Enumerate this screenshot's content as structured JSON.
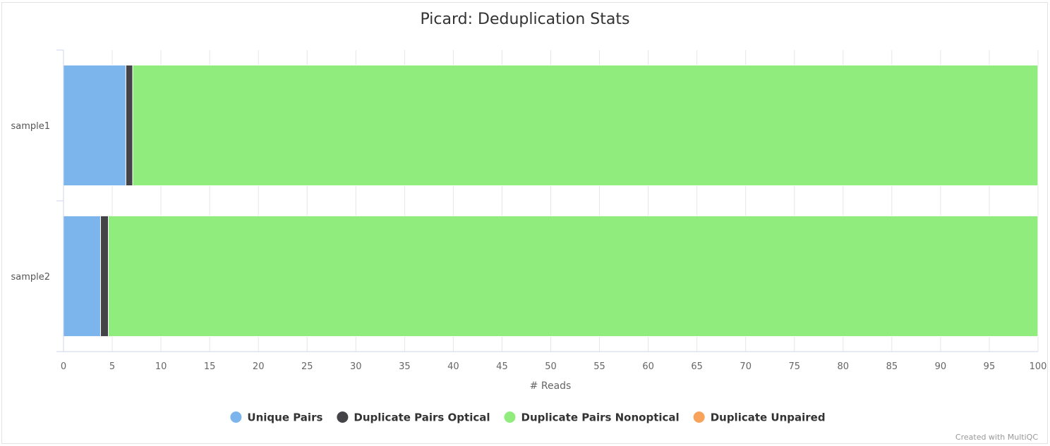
{
  "chart_data": {
    "type": "bar",
    "orientation": "horizontal",
    "stacked": "percent",
    "title": "Picard: Deduplication Stats",
    "xlabel": "# Reads",
    "ylabel": "",
    "xlim": [
      0,
      100
    ],
    "x_ticks": [
      "0",
      "5",
      "10",
      "15",
      "20",
      "25",
      "30",
      "35",
      "40",
      "45",
      "50",
      "55",
      "60",
      "65",
      "70",
      "75",
      "80",
      "85",
      "90",
      "95",
      "100"
    ],
    "categories": [
      "sample1",
      "sample2"
    ],
    "series": [
      {
        "name": "Unique Pairs",
        "color": "#7cb5ec",
        "values": [
          6.4,
          3.8
        ]
      },
      {
        "name": "Duplicate Pairs Optical",
        "color": "#434348",
        "values": [
          0.7,
          0.8
        ]
      },
      {
        "name": "Duplicate Pairs Nonoptical",
        "color": "#90ed7d",
        "values": [
          92.9,
          95.4
        ]
      },
      {
        "name": "Duplicate Unpaired",
        "color": "#f7a35c",
        "values": [
          0,
          0
        ]
      }
    ],
    "grid": true,
    "legend_position": "bottom-center",
    "credit": "Created with MultiQC"
  }
}
